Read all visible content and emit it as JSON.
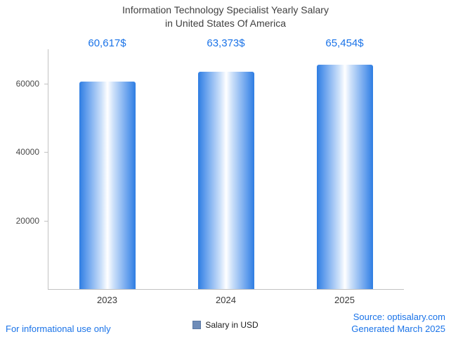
{
  "title": {
    "line1": "Information Technology Specialist Yearly Salary",
    "line2": "in United States Of America"
  },
  "chart_data": {
    "type": "bar",
    "categories": [
      "2023",
      "2024",
      "2025"
    ],
    "values": [
      60617,
      63373,
      65454
    ],
    "value_labels": [
      "60,617$",
      "63,373$",
      "65,454$"
    ],
    "title": "Information Technology Specialist Yearly Salary in United States Of America",
    "xlabel": "",
    "ylabel": "",
    "ylim": [
      0,
      70000
    ],
    "yticks": [
      20000,
      40000,
      60000
    ],
    "ytick_labels": [
      "20000",
      "40000",
      "60000"
    ],
    "grid": false,
    "legend": [
      "Salary in USD"
    ],
    "legend_position": "bottom",
    "bar_color": "#2e7de2",
    "bar_style": "horizontal-gradient-cylinder"
  },
  "legend": {
    "label": "Salary in USD",
    "swatch_color": "#6e8cb8"
  },
  "footer": {
    "left": "For informational use only",
    "source": "Source: optisalary.com",
    "generated": "Generated March 2025"
  },
  "colors": {
    "accent": "#1a73e8",
    "title_text": "#3f3f3f",
    "axis": "#c2c2c2",
    "tick_text": "#4a4a4a",
    "bar_blue": "#2e7de2"
  }
}
